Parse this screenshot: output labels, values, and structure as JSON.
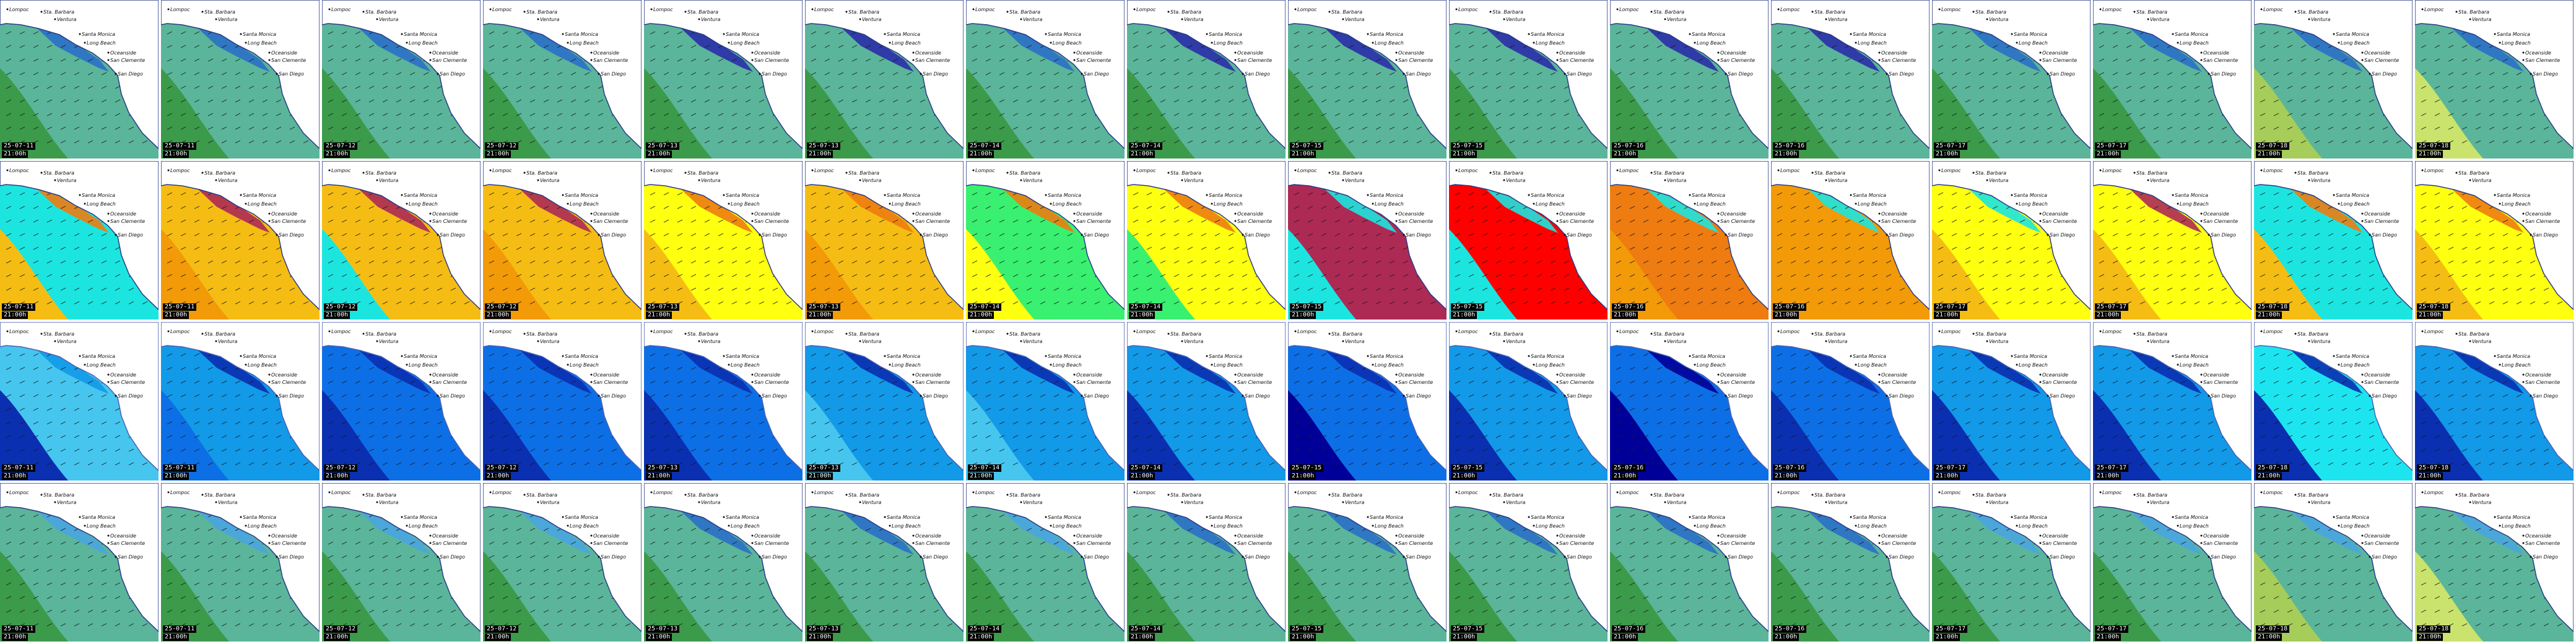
{
  "places": [
    "Lompoc",
    "Sta. Barbara",
    "Ventura",
    "Santa Monica",
    "Long Beach",
    "Oceanside",
    "San Clemente",
    "San Diego"
  ],
  "time": "21:00h",
  "dates": [
    "25-07-11",
    "25-07-11",
    "25-07-12",
    "25-07-12",
    "25-07-13",
    "25-07-13",
    "25-07-14",
    "25-07-14",
    "25-07-15",
    "25-07-15",
    "25-07-16",
    "25-07-16",
    "25-07-17",
    "25-07-17",
    "25-07-18",
    "25-07-18"
  ],
  "rows": [
    {
      "name": "swell-height-row",
      "land": "#ffffff",
      "coast": "#2a3a86",
      "palette": [
        "#3c9a4b",
        "#5bb59a",
        "#49a5e0",
        "#2a70c8",
        "#2a2ea8",
        "#a6cc5a",
        "#c9e36d"
      ],
      "bg": [
        1,
        1,
        1,
        1,
        1,
        1,
        1,
        1,
        1,
        1,
        1,
        1,
        1,
        1,
        1,
        1
      ],
      "accent": [
        0,
        0,
        0,
        0,
        0,
        0,
        0,
        0,
        0,
        0,
        0,
        0,
        0,
        0,
        5,
        6
      ],
      "inner": [
        3,
        3,
        3,
        3,
        4,
        4,
        3,
        4,
        4,
        4,
        4,
        4,
        3,
        3,
        3,
        3
      ]
    },
    {
      "name": "wave-period-row",
      "land": "#ffffff",
      "coast": "#2a3a86",
      "palette": [
        "#1ce5e0",
        "#f5bd13",
        "#f29a08",
        "#ffff10",
        "#39f070",
        "#ad2a55",
        "#ff0000",
        "#ee7c10"
      ],
      "bg": [
        0,
        1,
        1,
        1,
        3,
        1,
        4,
        3,
        5,
        6,
        7,
        2,
        3,
        3,
        0,
        3
      ],
      "accent": [
        1,
        2,
        0,
        2,
        1,
        2,
        3,
        4,
        0,
        0,
        2,
        2,
        1,
        1,
        1,
        1
      ],
      "inner": [
        7,
        5,
        5,
        5,
        7,
        7,
        7,
        7,
        0,
        0,
        0,
        0,
        0,
        5,
        7,
        7
      ]
    },
    {
      "name": "wind-speed-row",
      "land": "#ffffff",
      "coast": "#4b5fb0",
      "palette": [
        "#1299e8",
        "#46c6ef",
        "#0d6fe6",
        "#0a2fb0",
        "#00aaff",
        "#000099",
        "#1ce5f0"
      ],
      "bg": [
        1,
        0,
        2,
        2,
        2,
        0,
        0,
        0,
        2,
        0,
        2,
        2,
        0,
        0,
        6,
        0
      ],
      "accent": [
        3,
        2,
        3,
        3,
        3,
        1,
        1,
        3,
        5,
        3,
        5,
        3,
        3,
        3,
        3,
        3
      ],
      "inner": [
        0,
        3,
        3,
        3,
        3,
        3,
        3,
        3,
        3,
        3,
        5,
        3,
        3,
        3,
        3,
        3
      ]
    },
    {
      "name": "swell-height-row-2",
      "land": "#ffffff",
      "coast": "#2a3a86",
      "palette": [
        "#3c9a4b",
        "#5bb59a",
        "#49a5e0",
        "#2a70c8",
        "#2a2ea8",
        "#a6cc5a",
        "#c9e36d"
      ],
      "bg": [
        1,
        1,
        1,
        1,
        1,
        1,
        1,
        1,
        1,
        1,
        1,
        1,
        1,
        1,
        1,
        1
      ],
      "accent": [
        0,
        0,
        0,
        0,
        0,
        0,
        0,
        0,
        0,
        0,
        0,
        0,
        0,
        0,
        5,
        6
      ],
      "inner": [
        2,
        2,
        2,
        2,
        3,
        3,
        2,
        3,
        3,
        3,
        3,
        3,
        2,
        2,
        2,
        2
      ]
    }
  ]
}
